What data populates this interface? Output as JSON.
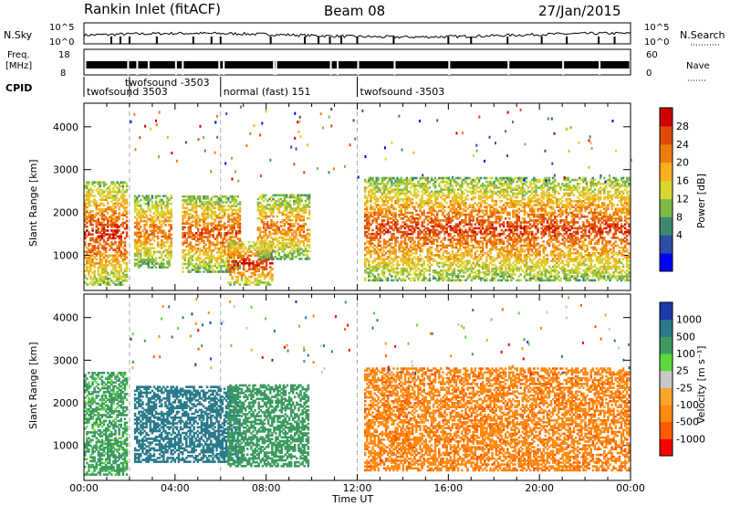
{
  "header": {
    "station": "Rankin Inlet (fitACF)",
    "beam": "Beam 08",
    "date": "27/Jan/2015"
  },
  "params": {
    "nsky_label": "N.Sky",
    "nsearch_label": "N.Search",
    "nsky_ticks": [
      "10^5",
      "10^0"
    ],
    "nsearch_ticks": [
      "10^5",
      "10^0"
    ],
    "freq_label_1": "Freq.",
    "freq_label_2": "[MHz]",
    "freq_ticks": [
      "18",
      "8"
    ],
    "nave_label": "Nave",
    "nave_ticks": [
      "60",
      "0"
    ],
    "cpid_label": "CPID",
    "cpid_modes": [
      {
        "label": "twofsound 3503",
        "start": 0,
        "end": 2
      },
      {
        "label": "twofsound -3503",
        "start": 2,
        "end": 6
      },
      {
        "label": "normal (fast) 151",
        "start": 6,
        "end": 12
      },
      {
        "label": "twofsound -3503",
        "start": 12,
        "end": 24
      }
    ]
  },
  "chart_data": [
    {
      "type": "heatmap",
      "name": "power",
      "ylabel": "Slant Range [km]",
      "ylim": [
        180,
        4550
      ],
      "yticks": [
        1000,
        2000,
        3000,
        4000
      ],
      "xlim": [
        0,
        24
      ],
      "colorbar": {
        "label": "Power [dB]",
        "ticks": [
          "28",
          "24",
          "20",
          "16",
          "12",
          "8",
          "4"
        ],
        "colors": [
          "#0000ff",
          "#2c4fa3",
          "#3c8a6e",
          "#7dba45",
          "#d8d630",
          "#f6b020",
          "#ee7d10",
          "#e04a08",
          "#d00000"
        ]
      },
      "echo_regions": [
        {
          "t0": 0.0,
          "t1": 1.9,
          "r0": 300,
          "r1": 2700,
          "peak": 26
        },
        {
          "t0": 2.2,
          "t1": 3.9,
          "r0": 700,
          "r1": 2400,
          "peak": 22
        },
        {
          "t0": 4.3,
          "t1": 6.9,
          "r0": 600,
          "r1": 2400,
          "peak": 24
        },
        {
          "t0": 6.3,
          "t1": 8.3,
          "r0": 300,
          "r1": 1300,
          "peak": 27
        },
        {
          "t0": 7.6,
          "t1": 9.9,
          "r0": 900,
          "r1": 2400,
          "peak": 22
        },
        {
          "t0": 12.3,
          "t1": 24.0,
          "r0": 400,
          "r1": 2800,
          "peak": 25
        }
      ]
    },
    {
      "type": "heatmap",
      "name": "velocity",
      "ylabel": "Slant Range [km]",
      "ylim": [
        180,
        4550
      ],
      "yticks": [
        1000,
        2000,
        3000,
        4000
      ],
      "xlim": [
        0,
        24
      ],
      "colorbar": {
        "label": "Velocity [m s⁻¹]",
        "ticks": [
          "1000",
          "500",
          "100",
          "25",
          "-25",
          "-100",
          "-500",
          "-1000"
        ],
        "colors": [
          "#ff0000",
          "#ff5a00",
          "#ff8a10",
          "#ffa52a",
          "#c8c8c8",
          "#5cd83a",
          "#3c9a60",
          "#2a7a8a",
          "#1d3aa8"
        ]
      },
      "echo_regions": [
        {
          "t0": 0.0,
          "t1": 1.9,
          "r0": 300,
          "r1": 2700,
          "vel": 200
        },
        {
          "t0": 2.2,
          "t1": 6.9,
          "r0": 600,
          "r1": 2400,
          "vel": 700
        },
        {
          "t0": 6.3,
          "t1": 9.9,
          "r0": 500,
          "r1": 2400,
          "vel": 300
        },
        {
          "t0": 12.3,
          "t1": 24.0,
          "r0": 400,
          "r1": 2800,
          "vel": -400
        }
      ]
    }
  ],
  "xaxis": {
    "ticks": [
      "00:00",
      "04:00",
      "08:00",
      "12:00",
      "16:00",
      "20:00",
      "00:00"
    ],
    "label": "Time UT"
  }
}
